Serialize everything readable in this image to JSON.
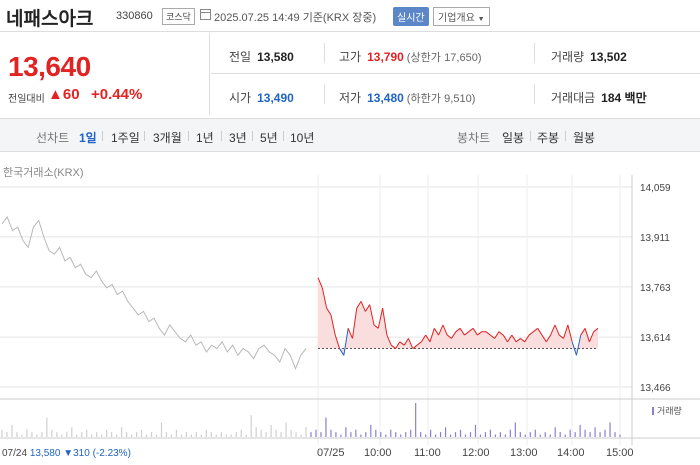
{
  "header": {
    "name": "네패스아크",
    "code": "330860",
    "market": "코스닥",
    "datetime": "2025.07.25 14:49 기준(KRX 장중)",
    "realtime": "실시간",
    "overview": "기업개요"
  },
  "price": {
    "current": "13,640",
    "prev_label": "전일대비",
    "change": "▲60",
    "change_pct": "+0.44%"
  },
  "stats": {
    "prev_close_label": "전일",
    "prev_close": "13,580",
    "high_label": "고가",
    "high": "13,790",
    "upper_limit_label": "(상한가",
    "upper_limit": "17,650)",
    "volume_label": "거래량",
    "volume": "13,502",
    "open_label": "시가",
    "open": "13,490",
    "low_label": "저가",
    "low": "13,480",
    "lower_limit_label": "(하한가",
    "lower_limit": "9,510)",
    "amount_label": "거래대금",
    "amount": "184 백만"
  },
  "toolbar": {
    "line_label": "선차트",
    "line_tabs": [
      "1일",
      "1주일",
      "3개월",
      "1년",
      "3년",
      "5년",
      "10년"
    ],
    "candle_label": "봉차트",
    "candle_tabs": [
      "일봉",
      "주봉",
      "월봉"
    ]
  },
  "chart": {
    "source": "한국거래소(KRX)",
    "volume_legend": "거래량",
    "bottom_date": "07/24",
    "bottom_price": "13,580",
    "bottom_change": "▼310",
    "bottom_pct": "(-2.23%)",
    "colors": {
      "up": "#e12323",
      "down": "#1f63c6",
      "prev": "#b8b8b8",
      "fill": "#fadede",
      "volume": "#8a7fd6"
    }
  },
  "chart_data": {
    "type": "line",
    "title": "",
    "yticks": [
      13466,
      13614,
      13763,
      13911,
      14059
    ],
    "ylim": [
      13466,
      14059
    ],
    "xticks": [
      "07/24",
      "07/25",
      "10:00",
      "11:00",
      "12:00",
      "13:00",
      "14:00",
      "15:00"
    ],
    "baseline": 13580,
    "series": [
      {
        "day": "07/24",
        "values": [
          13950,
          13970,
          13930,
          13940,
          13900,
          13880,
          13940,
          13960,
          13910,
          13870,
          13860,
          13880,
          13840,
          13850,
          13820,
          13830,
          13800,
          13790,
          13810,
          13780,
          13760,
          13770,
          13740,
          13750,
          13720,
          13700,
          13680,
          13690,
          13660,
          13670,
          13640,
          13620,
          13650,
          13630,
          13610,
          13600,
          13620,
          13590,
          13600,
          13570,
          13590,
          13580,
          13600,
          13570,
          13590,
          13560,
          13580,
          13570,
          13550,
          13580,
          13590,
          13570,
          13560,
          13540,
          13580,
          13560,
          13520,
          13560,
          13580
        ]
      },
      {
        "day": "07/25",
        "values": [
          13790,
          13760,
          13700,
          13680,
          13620,
          13580,
          13560,
          13640,
          13610,
          13700,
          13720,
          13690,
          13710,
          13650,
          13640,
          13700,
          13620,
          13590,
          13580,
          13600,
          13590,
          13610,
          13580,
          13590,
          13600,
          13620,
          13600,
          13640,
          13620,
          13650,
          13620,
          13610,
          13630,
          13640,
          13620,
          13630,
          13640,
          13620,
          13630,
          13630,
          13620,
          13610,
          13630,
          13620,
          13600,
          13620,
          13600,
          13610,
          13600,
          13620,
          13630,
          13640,
          13620,
          13600,
          13620,
          13650,
          13620,
          13610,
          13650,
          13600,
          13560,
          13620,
          13640,
          13600,
          13630,
          13640
        ]
      }
    ],
    "volume": [
      3,
      2,
      5,
      2,
      1,
      3,
      2,
      1,
      2,
      8,
      3,
      2,
      1,
      2,
      4,
      1,
      2,
      3,
      1,
      2,
      1,
      3,
      2,
      1,
      4,
      2,
      1,
      2,
      3,
      1,
      2,
      1,
      6,
      2,
      1,
      3,
      1,
      2,
      1,
      2,
      1,
      3,
      2,
      1,
      2,
      1,
      1,
      2,
      3,
      1,
      9,
      4,
      3,
      2,
      5,
      3,
      2,
      6,
      3,
      2,
      1,
      4,
      2,
      3,
      2,
      8,
      3,
      2,
      1,
      4,
      2,
      3,
      1,
      2,
      5,
      3,
      2,
      1,
      3,
      2,
      1,
      2,
      3,
      14,
      2,
      1,
      3,
      1,
      2,
      4,
      1,
      2,
      3,
      1,
      2,
      5,
      1,
      2,
      3,
      1,
      2,
      1,
      3,
      6,
      2,
      1,
      2,
      3,
      1,
      2,
      1,
      4,
      2,
      1,
      3,
      2,
      5,
      3,
      2,
      4,
      2,
      3,
      6,
      2,
      1
    ]
  }
}
